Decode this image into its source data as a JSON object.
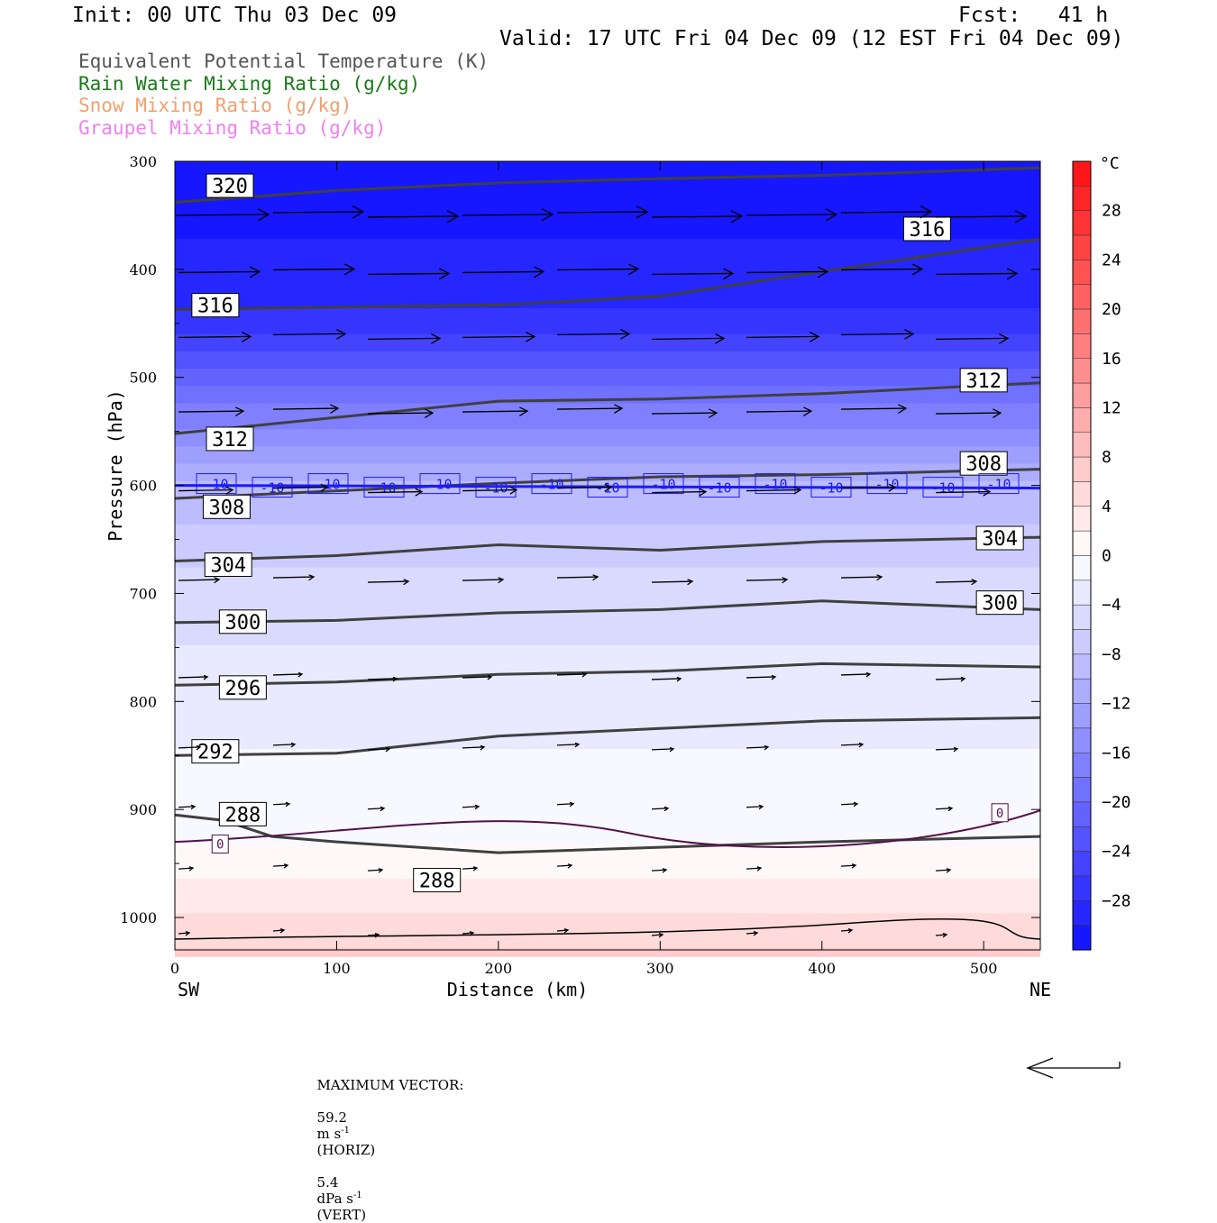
{
  "header": {
    "init": "Init: 00 UTC Thu 03 Dec 09",
    "fcst": "Fcst:   41 h",
    "valid": "Valid: 17 UTC Fri 04 Dec 09 (12 EST Fri 04 Dec 09)"
  },
  "fields": [
    {
      "label": "Equivalent Potential Temperature (K)",
      "color": "#555555"
    },
    {
      "label": "Rain Water Mixing Ratio (g/kg)",
      "color": "#1a7a1a"
    },
    {
      "label": "Snow Mixing Ratio (g/kg)",
      "color": "#f0a070"
    },
    {
      "label": "Graupel Mixing Ratio (g/kg)",
      "color": "#f080f0"
    }
  ],
  "chart_data": {
    "type": "contour cross-section",
    "xlabel": "Distance (km)",
    "ylabel": "Pressure (hPa)",
    "x_range": [
      0,
      535
    ],
    "y_range": [
      300,
      1030
    ],
    "y_scale": "linear, inverted",
    "x_ticks": [
      "0",
      "100",
      "200",
      "300",
      "400",
      "500"
    ],
    "y_ticks": [
      "300",
      "400",
      "500",
      "600",
      "700",
      "800",
      "900",
      "1000"
    ],
    "x_end_labels": {
      "left": "SW",
      "right": "NE"
    },
    "colorbar": {
      "unit": "°C",
      "labels": [
        "28",
        "24",
        "20",
        "16",
        "12",
        "8",
        "4",
        "0",
        "-4",
        "-8",
        "-12",
        "-16",
        "-20",
        "-24",
        "-28"
      ],
      "range": [
        -32,
        32
      ],
      "step": 2
    },
    "temperature_profile": [
      {
        "p": 300,
        "t": -32
      },
      {
        "p": 440,
        "t": -28
      },
      {
        "p": 510,
        "t": -20
      },
      {
        "p": 600,
        "t": -10
      },
      {
        "p": 700,
        "t": -5
      },
      {
        "p": 800,
        "t": -3
      },
      {
        "p": 930,
        "t": 0
      },
      {
        "p": 1030,
        "t": 6
      }
    ],
    "isentropes": [
      {
        "label": "320",
        "x": [
          0,
          100,
          200,
          300,
          400,
          535
        ],
        "p": [
          338,
          327,
          320,
          316,
          313,
          306
        ]
      },
      {
        "label": "316",
        "x": [
          0,
          100,
          200,
          300,
          400,
          535
        ],
        "p": [
          437,
          435,
          433,
          425,
          402,
          372
        ]
      },
      {
        "label": "312",
        "x": [
          0,
          100,
          200,
          300,
          400,
          535
        ],
        "p": [
          552,
          537,
          522,
          520,
          515,
          505
        ]
      },
      {
        "label": "308",
        "x": [
          0,
          100,
          200,
          300,
          400,
          535
        ],
        "p": [
          612,
          605,
          598,
          592,
          590,
          585
        ]
      },
      {
        "label": "304",
        "x": [
          0,
          100,
          200,
          300,
          400,
          535
        ],
        "p": [
          670,
          665,
          655,
          660,
          652,
          648
        ]
      },
      {
        "label": "300",
        "x": [
          0,
          100,
          200,
          300,
          400,
          535
        ],
        "p": [
          727,
          725,
          718,
          715,
          707,
          715
        ]
      },
      {
        "label": "296",
        "x": [
          0,
          100,
          200,
          300,
          400,
          535
        ],
        "p": [
          785,
          782,
          775,
          772,
          765,
          768
        ]
      },
      {
        "label": "292",
        "x": [
          0,
          100,
          200,
          300,
          400,
          535
        ],
        "p": [
          850,
          848,
          832,
          825,
          818,
          815
        ]
      },
      {
        "label": "288",
        "x": [
          0,
          30,
          60,
          100,
          200,
          300,
          400,
          535
        ],
        "p": [
          905,
          910,
          925,
          930,
          940,
          935,
          930,
          925
        ]
      }
    ],
    "isotherm_labels": {
      "minus10": "-10",
      "zero": "0"
    },
    "vector_caption": {
      "prefix": "MAXIMUM VECTOR:",
      "horiz_value": "59.2",
      "horiz_unit": "m s",
      "horiz_exp": "-1",
      "horiz_tag": "(HORIZ)",
      "vert_value": "5.4",
      "vert_unit": "dPa s",
      "vert_exp": "-1",
      "vert_tag": "(VERT)"
    }
  }
}
